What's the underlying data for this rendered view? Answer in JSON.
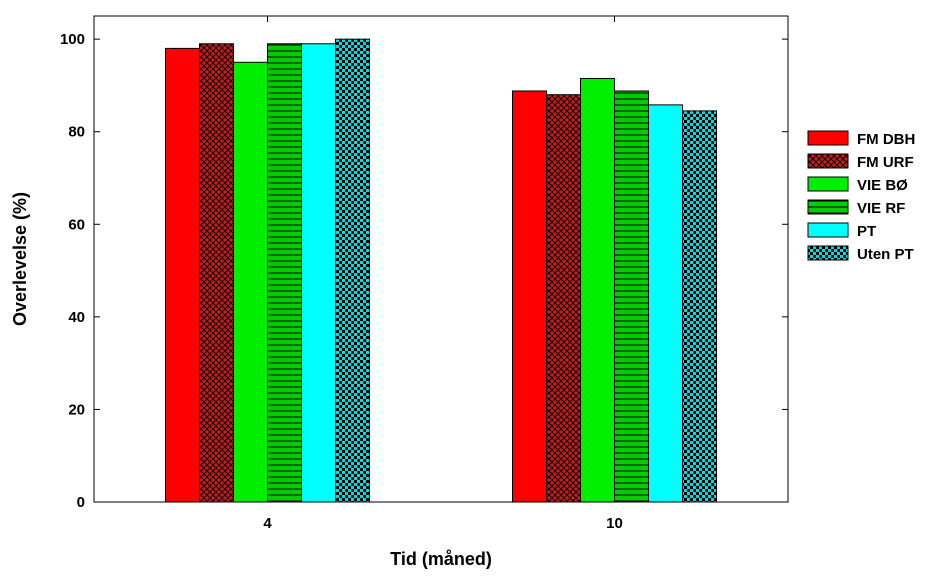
{
  "chart_data": {
    "type": "bar",
    "title": "",
    "xlabel": "Tid (måned)",
    "ylabel": "Overlevelse  (%)",
    "categories": [
      "4",
      "10"
    ],
    "ylim": [
      0,
      105
    ],
    "yticks": [
      "0",
      "20",
      "40",
      "60",
      "80",
      "100"
    ],
    "grid": false,
    "legend_position": "right",
    "series": [
      {
        "name": "FM DBH",
        "values": [
          98,
          88.8
        ],
        "color": "#ff0000",
        "pattern": "solid"
      },
      {
        "name": "FM URF",
        "values": [
          99,
          88
        ],
        "color": "#cc1a1a",
        "pattern": "crosshatch"
      },
      {
        "name": "VIE BØ",
        "values": [
          95,
          91.5
        ],
        "color": "#00ee00",
        "pattern": "solid"
      },
      {
        "name": "VIE RF",
        "values": [
          99,
          88.8
        ],
        "color": "#00cc00",
        "pattern": "horizontal-lines"
      },
      {
        "name": "PT",
        "values": [
          99,
          85.8
        ],
        "color": "#00ffff",
        "pattern": "solid"
      },
      {
        "name": "Uten PT",
        "values": [
          100,
          84.5
        ],
        "color": "#00dddd",
        "pattern": "checker"
      }
    ]
  }
}
